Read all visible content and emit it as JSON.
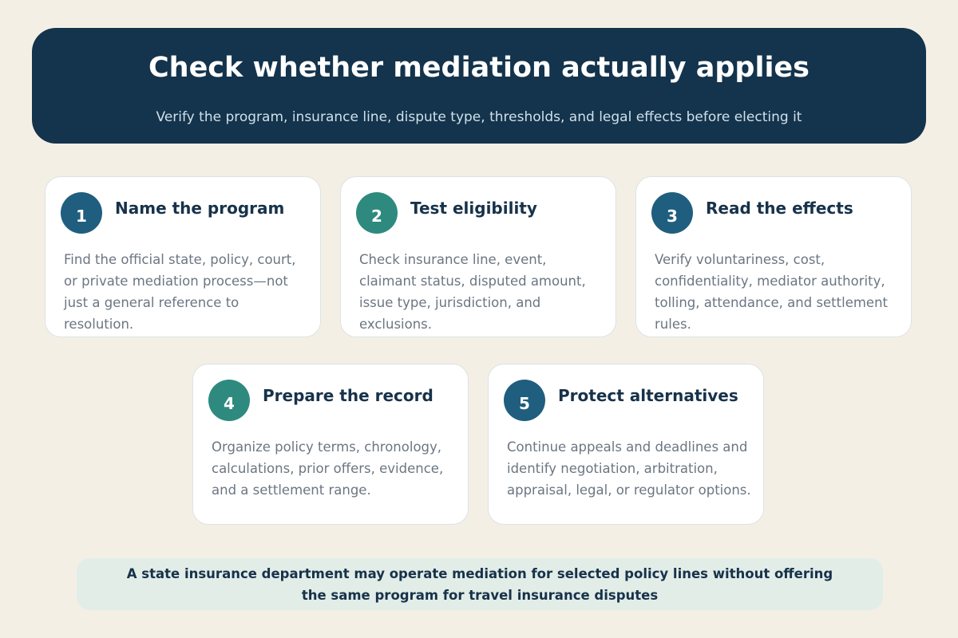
{
  "header": {
    "title": "Check whether mediation actually applies",
    "subtitle": "Verify the program, insurance line, dispute type, thresholds, and legal effects before electing it"
  },
  "cards": [
    {
      "number": 1,
      "color": "#1f5e7e",
      "title": "Name the program",
      "body": "Find the official state, policy, court, or private mediation process—not just a general reference to resolution."
    },
    {
      "number": 2,
      "color": "#2e8a7f",
      "title": "Test eligibility",
      "body": "Check insurance line, event, claimant status, disputed amount, issue type, jurisdiction, and exclusions."
    },
    {
      "number": 3,
      "color": "#1f5e7e",
      "title": "Read the effects",
      "body": "Verify voluntariness, cost, confidentiality, mediator authority, tolling, attendance, and settlement rules."
    },
    {
      "number": 4,
      "color": "#2e8a7f",
      "title": "Prepare the record",
      "body": "Organize policy terms, chronology, calculations, prior offers, evidence, and a settlement range."
    },
    {
      "number": 5,
      "color": "#1f5e7e",
      "title": "Protect alternatives",
      "body": "Continue appeals and deadlines and identify negotiation, arbitration, appraisal, legal, or regulator options."
    }
  ],
  "note": "A state insurance department may operate mediation for selected policy lines without offering the same program for travel insurance disputes"
}
